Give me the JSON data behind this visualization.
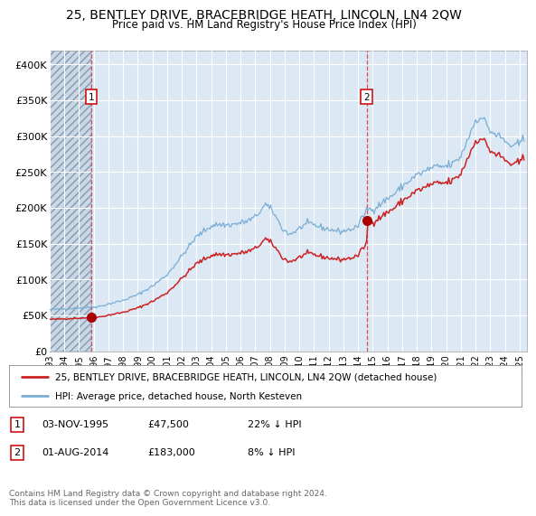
{
  "title": "25, BENTLEY DRIVE, BRACEBRIDGE HEATH, LINCOLN, LN4 2QW",
  "subtitle": "Price paid vs. HM Land Registry's House Price Index (HPI)",
  "bg_color": "#dce9f5",
  "hatch_bg_color": "#c8d8e8",
  "grid_color": "#ffffff",
  "hpi_color": "#7aadd4",
  "price_color": "#cc2222",
  "marker_color": "#aa0000",
  "sale1_date": 1995.84,
  "sale1_price": 47500,
  "sale2_date": 2014.58,
  "sale2_price": 183000,
  "xmin": 1993.0,
  "xmax": 2025.5,
  "ymin": 0,
  "ymax": 420000,
  "yticks": [
    0,
    50000,
    100000,
    150000,
    200000,
    250000,
    300000,
    350000,
    400000
  ],
  "ytick_labels": [
    "£0",
    "£50K",
    "£100K",
    "£150K",
    "£200K",
    "£250K",
    "£300K",
    "£350K",
    "£400K"
  ],
  "legend_line1": "25, BENTLEY DRIVE, BRACEBRIDGE HEATH, LINCOLN, LN4 2QW (detached house)",
  "legend_line2": "HPI: Average price, detached house, North Kesteven",
  "note1_label": "1",
  "note1_date": "03-NOV-1995",
  "note1_price": "£47,500",
  "note1_hpi": "22% ↓ HPI",
  "note2_label": "2",
  "note2_date": "01-AUG-2014",
  "note2_price": "£183,000",
  "note2_hpi": "8% ↓ HPI",
  "footnote": "Contains HM Land Registry data © Crown copyright and database right 2024.\nThis data is licensed under the Open Government Licence v3.0."
}
